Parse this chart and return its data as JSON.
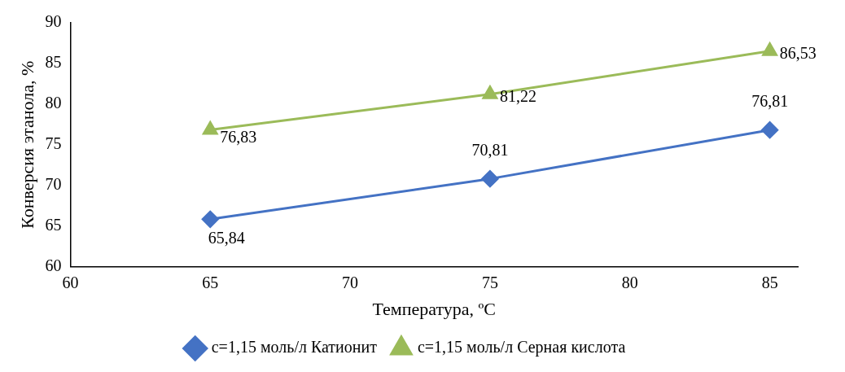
{
  "chart_data": {
    "type": "line",
    "xlabel": "Температура, ºC",
    "ylabel": "Конверсия этанола, %",
    "x": [
      65,
      75,
      85
    ],
    "xlim": [
      60,
      86
    ],
    "xticks": [
      60,
      65,
      70,
      75,
      80,
      85
    ],
    "ylim": [
      60,
      90
    ],
    "yticks": [
      60,
      65,
      70,
      75,
      80,
      85,
      90
    ],
    "grid": false,
    "legend": "bottom",
    "series": [
      {
        "name": "c=1,15 моль/л Катионит",
        "color": "#4472c4",
        "marker": "diamond",
        "values": [
          65.84,
          70.81,
          76.81
        ],
        "value_labels": [
          "65,84",
          "70,81",
          "76,81"
        ]
      },
      {
        "name": "c=1,15 моль/л Серная кислота",
        "color": "#9bbb59",
        "marker": "triangle",
        "values": [
          76.83,
          81.22,
          86.53
        ],
        "value_labels": [
          "76,83",
          "81,22",
          "86,53"
        ]
      }
    ]
  }
}
